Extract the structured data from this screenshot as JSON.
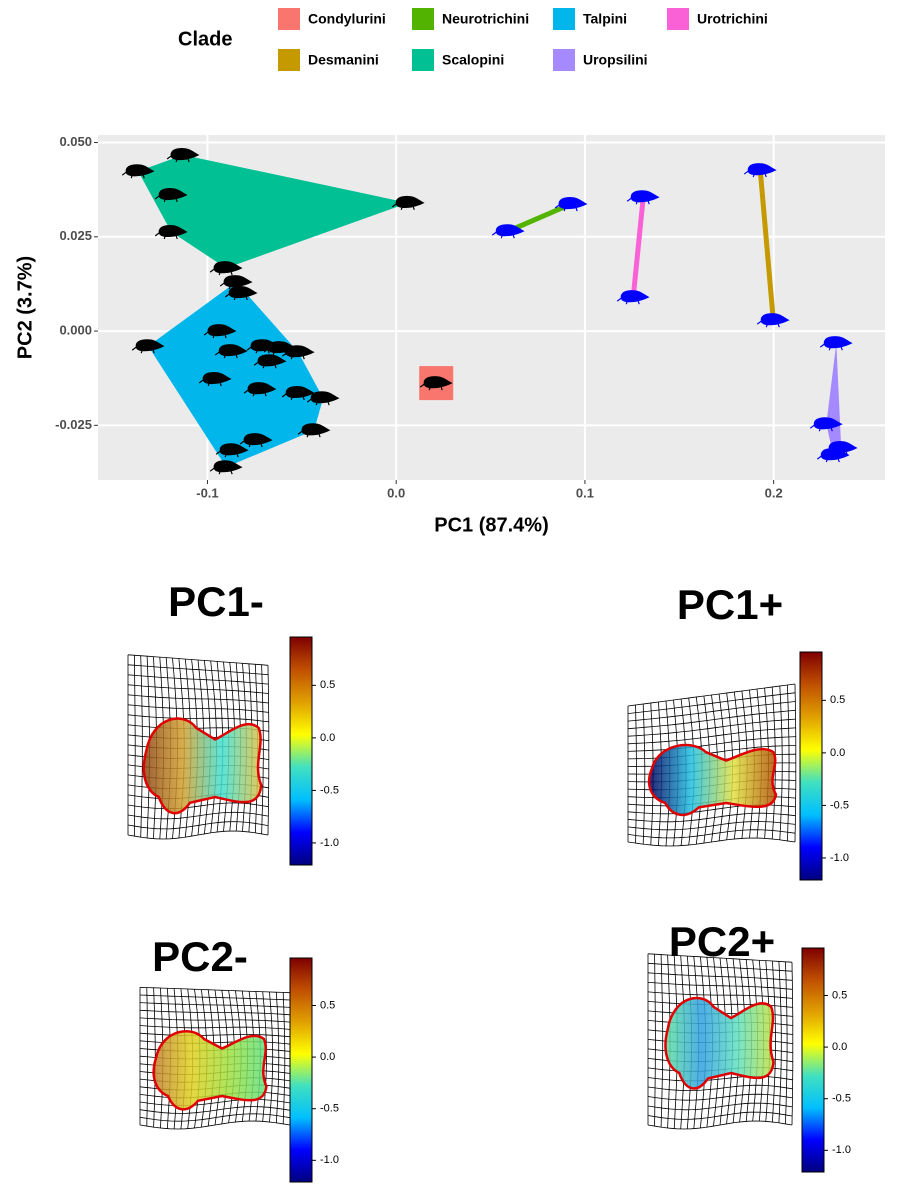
{
  "chart_data": [
    {
      "type": "scatter",
      "legend_title": "Clade",
      "legend_position": "top",
      "x_label": "PC1 (87.4%)",
      "y_label": "PC2 (3.7%)",
      "xlim": [
        -0.158,
        0.259
      ],
      "ylim": [
        -0.0395,
        0.052
      ],
      "xticks": [
        -0.1,
        {
          "value": 0,
          "label": "0.0"
        },
        0.1,
        0.2
      ],
      "yticks": [
        {
          "value": 0.05,
          "label": "0.050"
        },
        {
          "value": 0.025,
          "label": "0.025"
        },
        {
          "value": 0,
          "label": "0.000"
        },
        {
          "value": -0.025,
          "label": "-0.025"
        }
      ],
      "grid": true,
      "series": [
        {
          "name": "Condylurini",
          "color": "#F8766D",
          "marker_color": "#000000",
          "x": [
            0.0212
          ],
          "y": [
            -0.0138
          ]
        },
        {
          "name": "Desmanini",
          "color": "#C49A00",
          "marker_color": "#0000FF",
          "x": [
            0.1929,
            0.1998
          ],
          "y": [
            0.0427,
            0.0029
          ]
        },
        {
          "name": "Neurotrichini",
          "color": "#53B400",
          "marker_color": "#0000FF",
          "x": [
            0.0594,
            0.0927
          ],
          "y": [
            0.0265,
            0.0337
          ]
        },
        {
          "name": "Scalopini",
          "color": "#00C094",
          "marker_color": "#000000",
          "x": [
            -0.1129,
            -0.1367,
            -0.1192,
            -0.1192,
            0.0064,
            -0.0901
          ],
          "y": [
            0.0467,
            0.0424,
            0.0361,
            0.0263,
            0.034,
            0.0167
          ]
        },
        {
          "name": "Talpini",
          "color": "#00B6EB",
          "marker_color": "#000000",
          "x": [
            -0.0848,
            -0.0821,
            -0.1314,
            -0.0933,
            -0.0874,
            -0.0705,
            -0.0615,
            -0.0668,
            -0.0519,
            -0.0959,
            -0.0721,
            -0.0519,
            -0.0387,
            -0.0435,
            -0.0742,
            -0.0869,
            -0.0901
          ],
          "y": [
            0.013,
            0.0101,
            -0.004,
            0.0,
            -0.0053,
            -0.004,
            -0.0045,
            -0.008,
            -0.0056,
            -0.0127,
            -0.0154,
            -0.0164,
            -0.0178,
            -0.0263,
            -0.0289,
            -0.0316,
            -0.0361
          ]
        },
        {
          "name": "Uropsilini",
          "color": "#A58AFF",
          "marker_color": "#0000FF",
          "x": [
            0.2332,
            0.2279,
            0.2358,
            0.2316
          ],
          "y": [
            -0.0032,
            -0.0247,
            -0.031,
            -0.0329
          ]
        },
        {
          "name": "Urotrichini",
          "color": "#FB61D7",
          "marker_color": "#0000FF",
          "x": [
            0.1309,
            0.1256
          ],
          "y": [
            0.0355,
            0.009
          ]
        }
      ]
    },
    {
      "type": "colorbar",
      "title": "PC1-",
      "ylim": [
        -1.21,
        0.96
      ],
      "yticks": [
        0.5,
        {
          "value": 0,
          "label": "0.0"
        },
        -0.5,
        {
          "value": -1,
          "label": "-1.0"
        }
      ],
      "colors": [
        "#00007F",
        "#0000FF",
        "#00BFFF",
        "#40E0C0",
        "#FFFF00",
        "#E0A000",
        "#C05000",
        "#7F0000"
      ]
    },
    {
      "type": "colorbar",
      "title": "PC1+",
      "ylim": [
        -1.21,
        0.96
      ],
      "yticks": [
        0.5,
        {
          "value": 0,
          "label": "0.0"
        },
        -0.5,
        {
          "value": -1,
          "label": "-1.0"
        }
      ],
      "colors": [
        "#00007F",
        "#0000FF",
        "#00BFFF",
        "#40E0C0",
        "#FFFF00",
        "#E0A000",
        "#C05000",
        "#7F0000"
      ]
    },
    {
      "type": "colorbar",
      "title": "PC2-",
      "ylim": [
        -1.21,
        0.96
      ],
      "yticks": [
        0.5,
        {
          "value": 0,
          "label": "0.0"
        },
        -0.5,
        {
          "value": -1,
          "label": "-1.0"
        }
      ],
      "colors": [
        "#00007F",
        "#0000FF",
        "#00BFFF",
        "#40E0C0",
        "#FFFF00",
        "#E0A000",
        "#C05000",
        "#7F0000"
      ]
    },
    {
      "type": "colorbar",
      "title": "PC2+",
      "ylim": [
        -1.21,
        0.96
      ],
      "yticks": [
        0.5,
        {
          "value": 0,
          "label": "0.0"
        },
        -0.5,
        {
          "value": -1,
          "label": "-1.0"
        }
      ],
      "colors": [
        "#00007F",
        "#0000FF",
        "#00BFFF",
        "#40E0C0",
        "#FFFF00",
        "#E0A000",
        "#C05000",
        "#7F0000"
      ]
    }
  ]
}
